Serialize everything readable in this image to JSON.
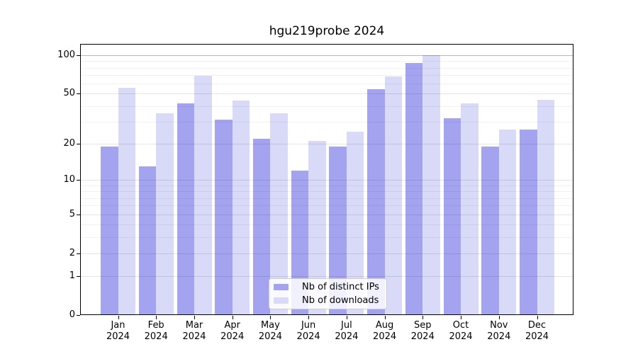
{
  "title": "hgu219probe 2024",
  "legend": {
    "ips": "Nb of distinct IPs",
    "downloads": "Nb of downloads"
  },
  "colors": {
    "ips_bar": "#a3a3f0",
    "downloads_bar": "#d9d9f8",
    "axis": "#000000",
    "grid_major": "rgba(0,0,0,0.10)",
    "grid_minor": "rgba(0,0,0,0.055)",
    "grid_top": "rgba(0,0,0,0.28)"
  },
  "chart_data": {
    "type": "bar",
    "title": "hgu219probe 2024",
    "categories": [
      "Jan 2024",
      "Feb 2024",
      "Mar 2024",
      "Apr 2024",
      "May 2024",
      "Jun 2024",
      "Jul 2024",
      "Aug 2024",
      "Sep 2024",
      "Oct 2024",
      "Nov 2024",
      "Dec 2024"
    ],
    "series": [
      {
        "name": "Nb of distinct IPs",
        "color": "#a3a3f0",
        "values": [
          19,
          13,
          42,
          31,
          22,
          12,
          19,
          54,
          87,
          32,
          19,
          26
        ]
      },
      {
        "name": "Nb of downloads",
        "color": "#d9d9f8",
        "values": [
          56,
          35,
          69,
          44,
          35,
          21,
          25,
          68,
          100,
          42,
          26,
          45
        ]
      }
    ],
    "xlabel": "",
    "ylabel": "",
    "y_scale": "log10(1+v)",
    "ylim": [
      0,
      123
    ],
    "y_ticks": [
      0,
      1,
      2,
      5,
      10,
      20,
      50,
      100
    ],
    "y_tick_labels": [
      "0",
      "1",
      "2",
      "5",
      "10",
      "20",
      "50",
      "100"
    ],
    "y_minor_ticks": [
      3,
      4,
      6,
      7,
      8,
      9,
      30,
      40,
      60,
      70,
      80,
      90
    ],
    "grid": "on",
    "legend_position": "lower center",
    "legend_entries": [
      "Nb of distinct IPs",
      "Nb of downloads"
    ]
  }
}
